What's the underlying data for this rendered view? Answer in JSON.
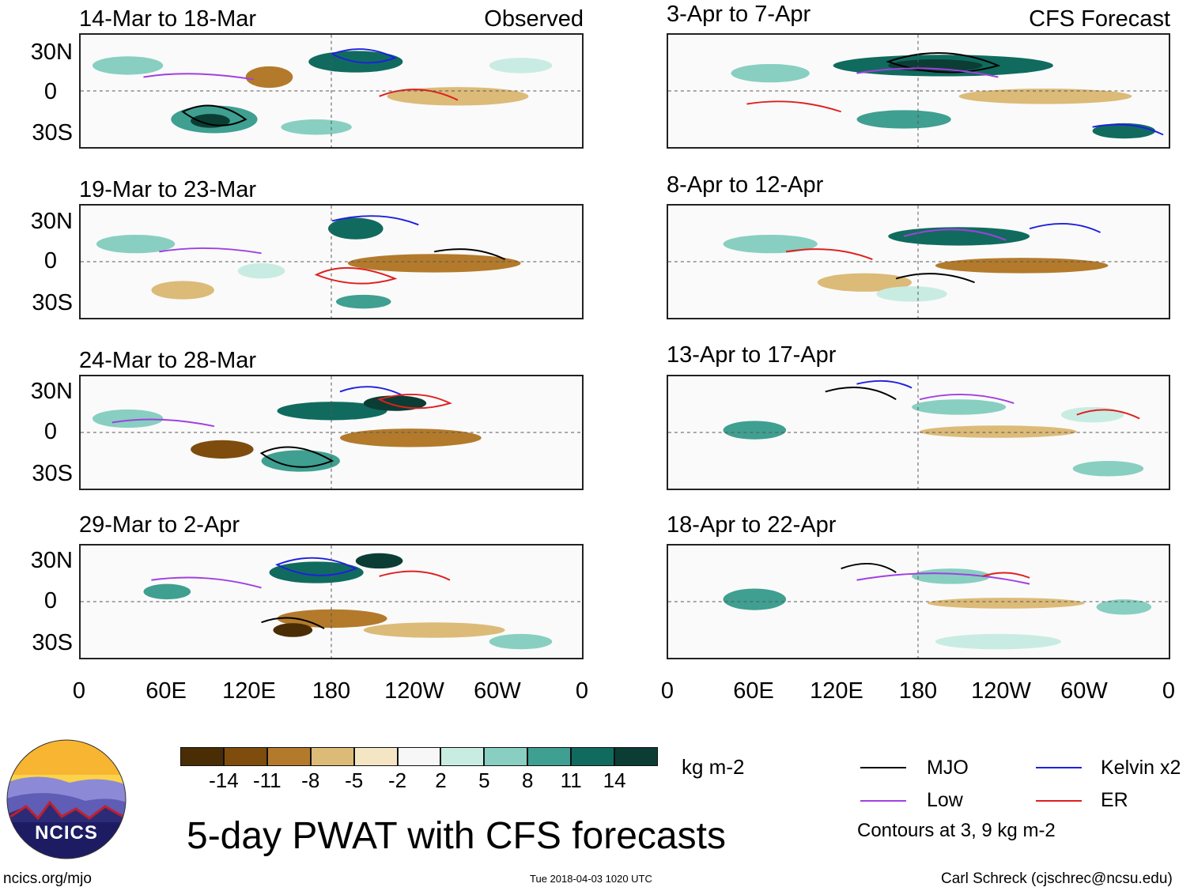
{
  "left_column": {
    "header_right": "Observed",
    "panels": [
      {
        "title": "14-Mar to 18-Mar"
      },
      {
        "title": "19-Mar to 23-Mar"
      },
      {
        "title": "24-Mar to 28-Mar"
      },
      {
        "title": "29-Mar to 2-Apr"
      }
    ]
  },
  "right_column": {
    "header_right": "CFS Forecast",
    "panels": [
      {
        "title": "3-Apr to 7-Apr"
      },
      {
        "title": "8-Apr to 12-Apr"
      },
      {
        "title": "13-Apr to 17-Apr"
      },
      {
        "title": "18-Apr to 22-Apr"
      }
    ]
  },
  "axes": {
    "lat_labels": [
      "30N",
      "0",
      "30S"
    ],
    "lon_labels": [
      "0",
      "60E",
      "120E",
      "180",
      "120W",
      "60W",
      "0"
    ]
  },
  "colorbar": {
    "colors": [
      "#4a2c05",
      "#7e4c0d",
      "#b37a2c",
      "#dcba78",
      "#f4e6c4",
      "#f7f7f7",
      "#c9ece2",
      "#88cfc1",
      "#3f9f90",
      "#106b5e",
      "#0b3d34"
    ],
    "tick_labels": [
      "-14",
      "-11",
      "-8",
      "-5",
      "-2",
      "2",
      "5",
      "8",
      "11",
      "14"
    ],
    "units": "kg m-2"
  },
  "legend": {
    "items": [
      {
        "label": "MJO",
        "color": "#000000"
      },
      {
        "label": "Kelvin x2",
        "color": "#1f1fe0"
      },
      {
        "label": "Low",
        "color": "#a040e0"
      },
      {
        "label": "ER",
        "color": "#e01f1f"
      }
    ],
    "note": "Contours at 3, 9 kg m-2"
  },
  "logo": {
    "text": "NCICS"
  },
  "main_title": "5-day PWAT with CFS forecasts",
  "footer": {
    "url": "ncics.org/mjo",
    "timestamp": "Tue 2018-04-03 1020 UTC",
    "author": "Carl Schreck (cjschrec@ncsu.edu)"
  }
}
